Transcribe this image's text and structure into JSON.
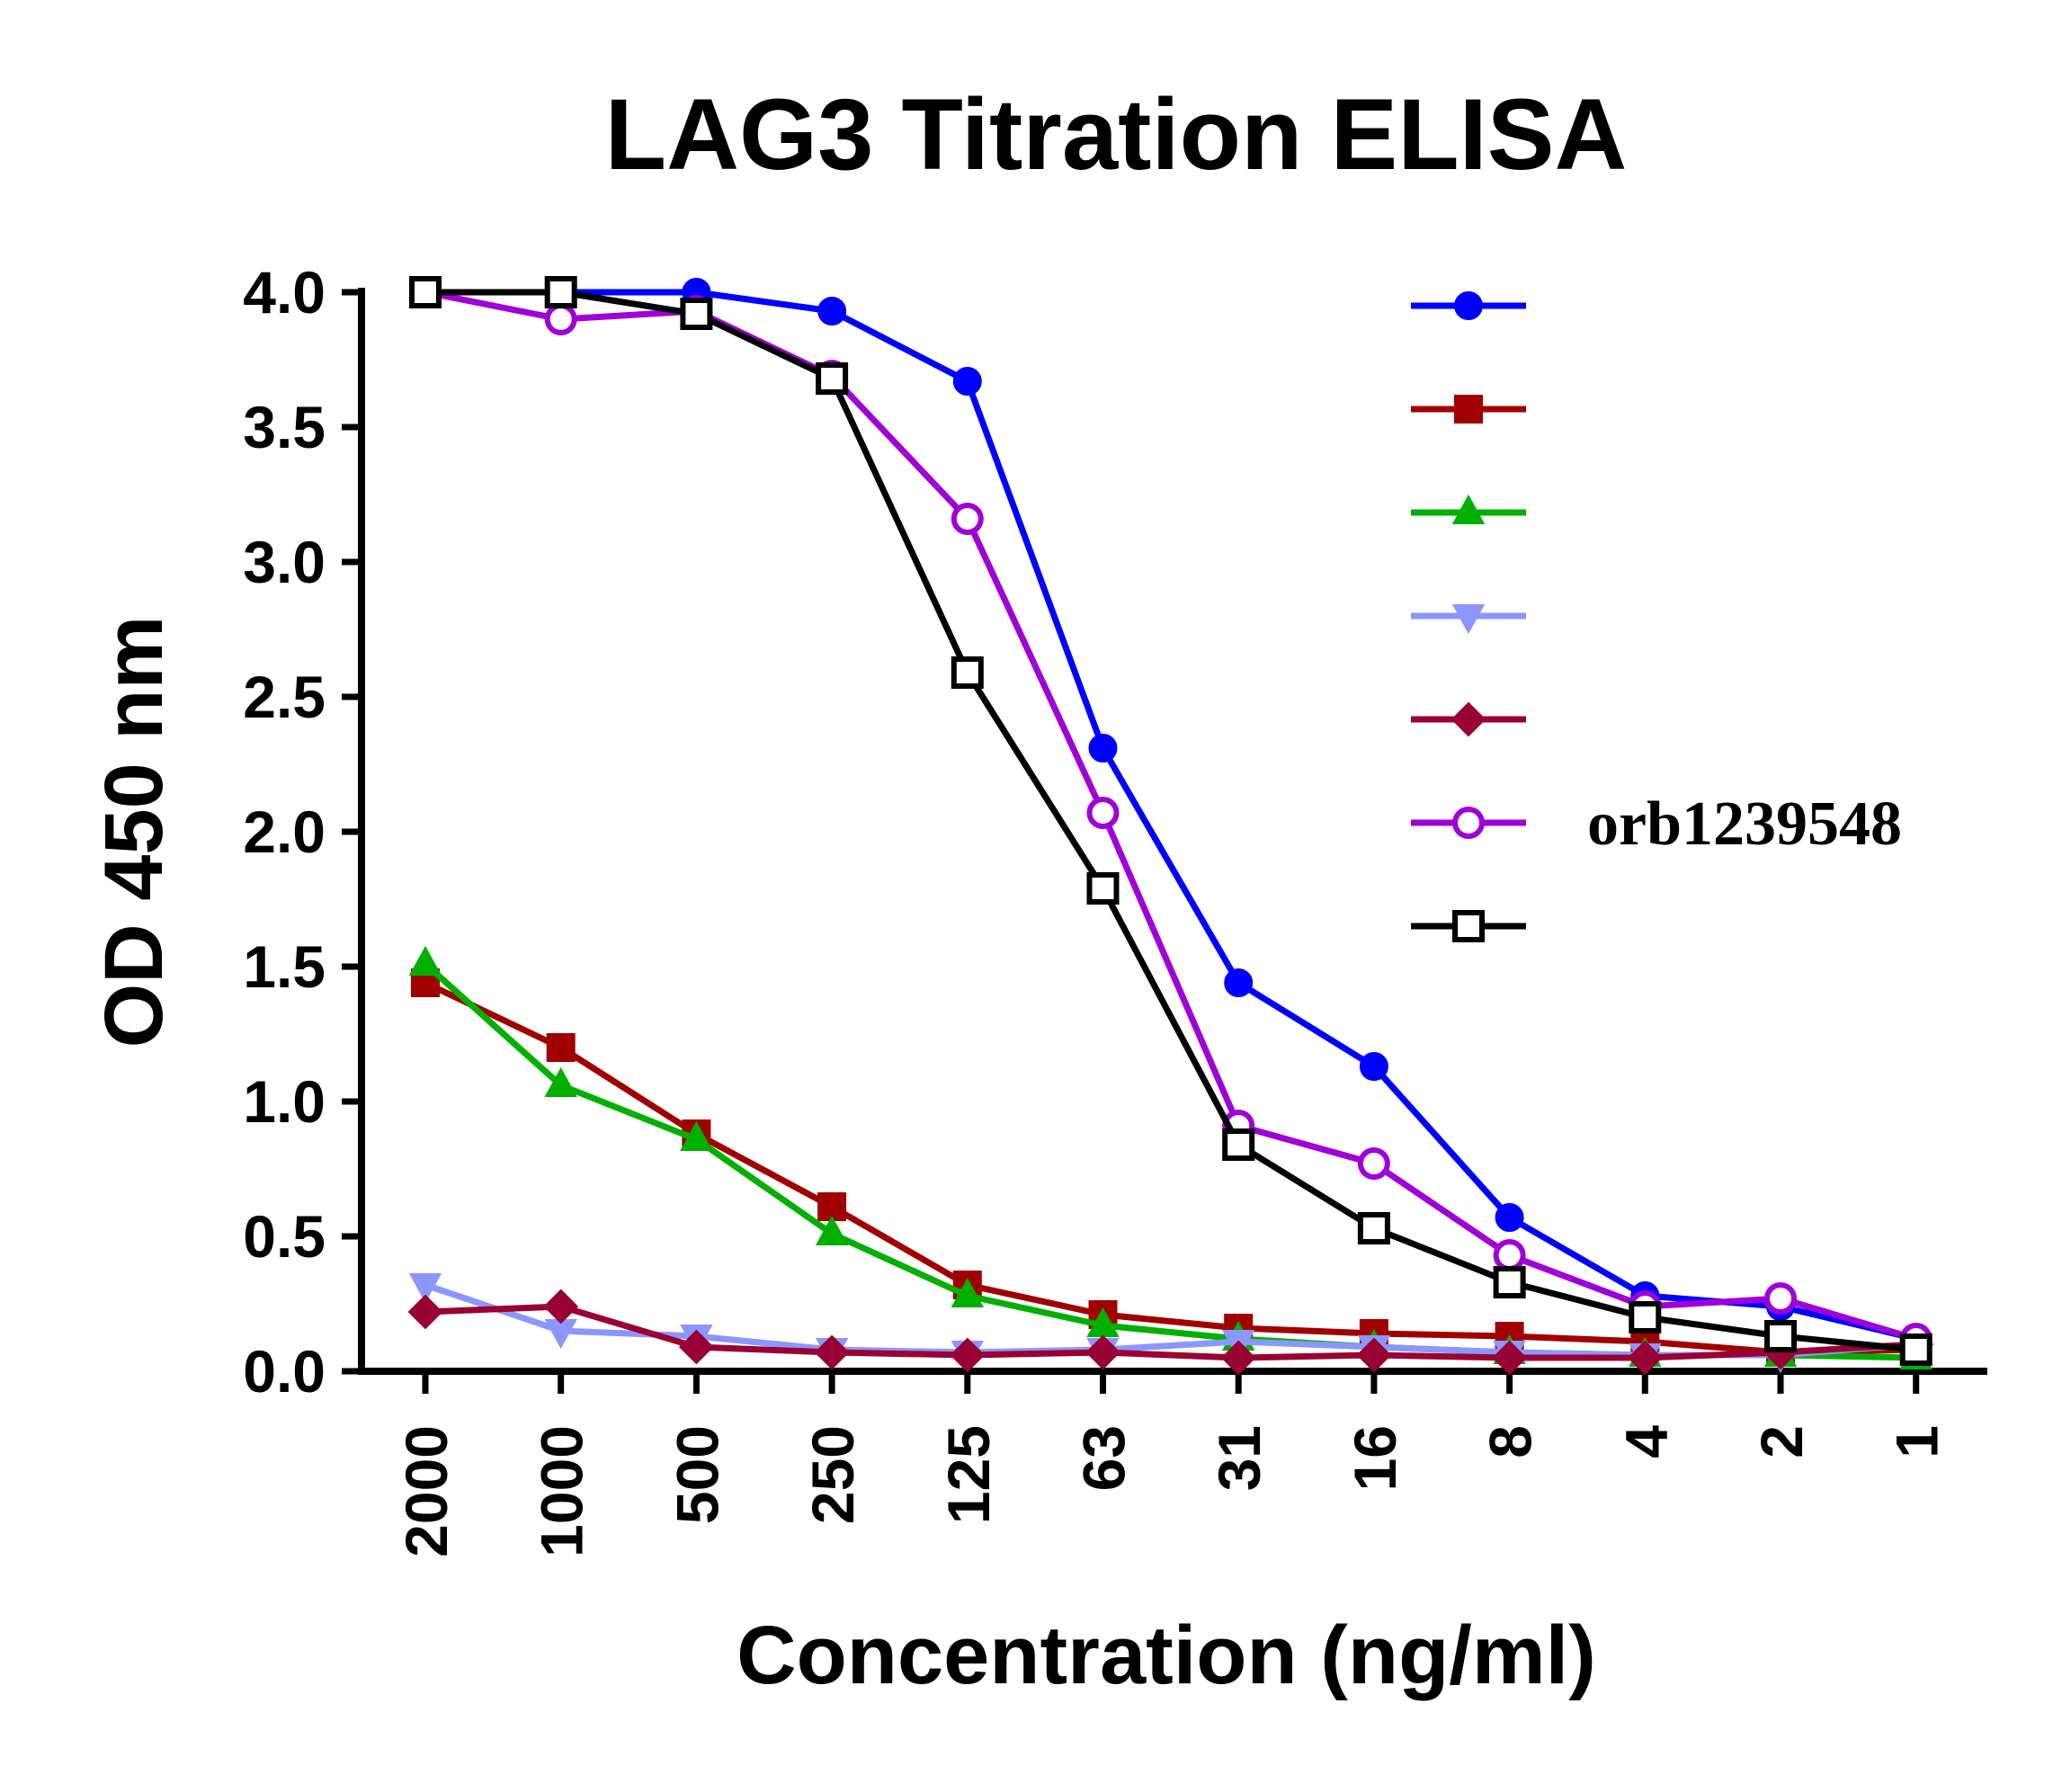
{
  "chart_data": {
    "type": "line",
    "title": "LAG3 Titration ELISA",
    "x_label": "Concentration (ng/ml)",
    "y_label": "OD 450 nm",
    "categories": [
      "2000",
      "1000",
      "500",
      "250",
      "125",
      "63",
      "31",
      "16",
      "8",
      "4",
      "2",
      "1"
    ],
    "ylim": [
      0,
      4
    ],
    "yticks": [
      {
        "value": 0,
        "label": "0.0"
      },
      {
        "value": 0.5,
        "label": "0.5"
      },
      {
        "value": 1,
        "label": "1.0"
      },
      {
        "value": 1.5,
        "label": "1.5"
      },
      {
        "value": 2,
        "label": "2.0"
      },
      {
        "value": 2.5,
        "label": "2.5"
      },
      {
        "value": 3,
        "label": "3.0"
      },
      {
        "value": 3.5,
        "label": "3.5"
      },
      {
        "value": 4,
        "label": "4.0"
      }
    ],
    "legend": "upper right",
    "series": [
      {
        "color": "#0000ff",
        "marker": "circle",
        "values": [
          4.0,
          4.0,
          4.0,
          3.93,
          3.67,
          2.31,
          1.44,
          1.13,
          0.57,
          0.28,
          0.24,
          0.12
        ]
      },
      {
        "color": "#a00000",
        "marker": "square",
        "values": [
          1.44,
          1.2,
          0.88,
          0.61,
          0.32,
          0.21,
          0.16,
          0.14,
          0.13,
          0.11,
          0.07,
          0.08
        ]
      },
      {
        "color": "#00b000",
        "marker": "triangle-up",
        "values": [
          1.51,
          1.06,
          0.86,
          0.51,
          0.28,
          0.17,
          0.12,
          0.09,
          0.07,
          0.06,
          0.06,
          0.05
        ]
      },
      {
        "color": "#8c96ff",
        "marker": "triangle-down",
        "values": [
          0.32,
          0.15,
          0.13,
          0.08,
          0.07,
          0.08,
          0.11,
          0.09,
          0.07,
          0.06,
          0.06,
          0.1
        ]
      },
      {
        "color": "#990033",
        "marker": "diamond",
        "values": [
          0.22,
          0.24,
          0.09,
          0.07,
          0.06,
          0.07,
          0.05,
          0.06,
          0.05,
          0.05,
          0.07,
          0.1
        ]
      },
      {
        "name": "orb1239548",
        "color": "#a000d8",
        "marker": "open-circle",
        "values": [
          4.0,
          3.9,
          3.93,
          3.69,
          3.16,
          2.07,
          0.91,
          0.77,
          0.43,
          0.24,
          0.27,
          0.12
        ]
      },
      {
        "color": "#000000",
        "marker": "open-square",
        "values": [
          4.0,
          4.0,
          3.92,
          3.68,
          2.59,
          1.79,
          0.84,
          0.53,
          0.33,
          0.2,
          0.13,
          0.08
        ]
      }
    ]
  }
}
